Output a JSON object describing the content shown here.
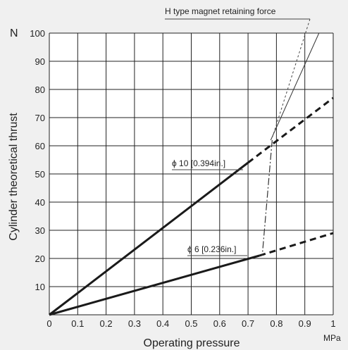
{
  "chart_data": {
    "type": "line",
    "ylabel": "Cylinder theoretical thrust",
    "y_unit": "N",
    "xlabel": "Operating pressure",
    "x_unit": "MPa",
    "xlim": [
      0,
      1.0
    ],
    "ylim": [
      0,
      100
    ],
    "x_ticks": [
      "0",
      "0.1",
      "0.2",
      "0.3",
      "0.4",
      "0.5",
      "0.6",
      "0.7",
      "0.8",
      "0.9",
      "1"
    ],
    "y_ticks": [
      "10",
      "20",
      "30",
      "40",
      "50",
      "60",
      "70",
      "80",
      "90",
      "100"
    ],
    "grid": true,
    "series": [
      {
        "name": "ϕ 10 [0.394in.]",
        "points": [
          [
            0,
            0
          ],
          [
            0.7,
            54
          ]
        ],
        "dashed_points": [
          [
            0.7,
            54
          ],
          [
            1.0,
            77
          ]
        ]
      },
      {
        "name": "ϕ 6 [0.236in.]",
        "points": [
          [
            0,
            0
          ],
          [
            0.74,
            21
          ]
        ],
        "dashed_points": [
          [
            0.74,
            21
          ],
          [
            1.0,
            29
          ]
        ]
      },
      {
        "name": "H type magnet retaining force",
        "points": [
          [
            0.78,
            62
          ],
          [
            0.95,
            100
          ]
        ]
      }
    ],
    "limit_line": {
      "points": [
        [
          0.785,
          62
        ],
        [
          0.75,
          21
        ]
      ],
      "style": "dash-dot"
    },
    "annotations": {
      "h_type": "H type magnet retaining force",
      "phi10": "ϕ 10 [0.394in.]",
      "phi6": "ϕ 6 [0.236in.]"
    }
  }
}
